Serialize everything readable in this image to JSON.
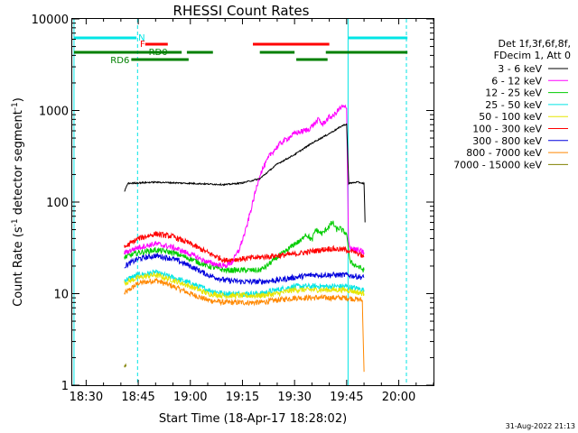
{
  "chart_data": {
    "type": "line",
    "title": "RHESSI Count Rates",
    "xlabel": "Start Time (18-Apr-17 18:28:02)",
    "ylabel": "Count Rate (s⁻¹ detector segment⁻¹)",
    "ylabel_parts": [
      "Count Rate (s",
      "-1",
      " detector segment",
      "-1",
      ")"
    ],
    "xlim_minutes": [
      26,
      130
    ],
    "ylim": [
      1,
      10000
    ],
    "yscale": "log",
    "x_ticks": [
      {
        "label": "18:30",
        "minute": 30
      },
      {
        "label": "18:45",
        "minute": 45
      },
      {
        "label": "19:00",
        "minute": 60
      },
      {
        "label": "19:15",
        "minute": 75
      },
      {
        "label": "19:30",
        "minute": 90
      },
      {
        "label": "19:45",
        "minute": 105
      },
      {
        "label": "20:00",
        "minute": 120
      }
    ],
    "y_ticks": [
      {
        "label": "1",
        "value": 1
      },
      {
        "label": "10",
        "value": 10
      },
      {
        "label": "100",
        "value": 100
      },
      {
        "label": "1000",
        "value": 1000
      },
      {
        "label": "10000",
        "value": 10000
      }
    ],
    "legend_header": [
      "Det 1f,3f,6f,8f,",
      "FDecim 1, Att 0"
    ],
    "legend_placement": "right",
    "series": [
      {
        "name": "3 - 6 keV",
        "color": "#000000",
        "x": [
          41,
          42,
          50,
          60,
          70,
          75,
          80,
          85,
          90,
          95,
          100,
          104,
          105,
          105.6,
          108,
          110,
          110.3
        ],
        "y": [
          130,
          160,
          165,
          160,
          155,
          162,
          180,
          260,
          330,
          440,
          560,
          690,
          710,
          160,
          165,
          160,
          60
        ]
      },
      {
        "name": "6 - 12 keV",
        "color": "#ff00ff",
        "x": [
          41,
          45,
          50,
          55,
          60,
          65,
          70,
          72,
          74,
          76,
          78,
          80,
          83,
          86,
          90,
          94,
          97,
          98,
          100,
          101,
          103,
          104,
          105,
          105.5,
          106,
          108,
          110
        ],
        "y": [
          28,
          32,
          35,
          32,
          27,
          22,
          20,
          22,
          30,
          50,
          100,
          200,
          330,
          440,
          560,
          620,
          800,
          700,
          850,
          860,
          1050,
          1100,
          1050,
          40,
          32,
          30,
          28
        ]
      },
      {
        "name": "12 - 25 keV",
        "color": "#00cc00",
        "x": [
          41,
          45,
          50,
          55,
          60,
          65,
          70,
          75,
          80,
          82,
          85,
          88,
          90,
          92,
          93,
          94,
          95,
          96,
          98,
          100,
          101,
          102,
          103,
          104,
          105,
          106,
          108,
          110
        ],
        "y": [
          25,
          28,
          30,
          28,
          24,
          20,
          18,
          18,
          18,
          20,
          25,
          30,
          35,
          38,
          45,
          42,
          38,
          50,
          45,
          55,
          60,
          50,
          52,
          48,
          45,
          22,
          20,
          18
        ]
      },
      {
        "name": "25 - 50 keV",
        "color": "#00e5e5",
        "x": [
          41,
          45,
          50,
          55,
          60,
          65,
          70,
          75,
          80,
          85,
          90,
          95,
          100,
          105,
          110
        ],
        "y": [
          14,
          16,
          17,
          15,
          13,
          11,
          10,
          10,
          10,
          11,
          12,
          12,
          12,
          12,
          11
        ]
      },
      {
        "name": "50 - 100 keV",
        "color": "#e6e600",
        "x": [
          41,
          45,
          50,
          55,
          60,
          65,
          70,
          75,
          80,
          85,
          90,
          95,
          100,
          105,
          110
        ],
        "y": [
          13,
          15,
          16,
          14,
          12,
          10,
          9.5,
          9.5,
          9.5,
          10,
          11,
          11,
          11,
          11,
          10
        ]
      },
      {
        "name": "100 - 300 keV",
        "color": "#ff0000",
        "x": [
          41,
          45,
          50,
          55,
          60,
          65,
          70,
          75,
          80,
          85,
          90,
          95,
          100,
          105,
          108,
          110
        ],
        "y": [
          32,
          40,
          45,
          42,
          35,
          28,
          23,
          24,
          25,
          26,
          27,
          29,
          31,
          30,
          28,
          25
        ]
      },
      {
        "name": "300 - 800 keV",
        "color": "#0000dd",
        "x": [
          41,
          45,
          50,
          55,
          60,
          65,
          70,
          75,
          80,
          85,
          90,
          95,
          100,
          105,
          110
        ],
        "y": [
          20,
          24,
          26,
          24,
          20,
          16,
          14,
          13.5,
          13.5,
          14,
          15,
          16,
          16,
          16,
          15
        ]
      },
      {
        "name": "800 - 7000 keV",
        "color": "#ff8800",
        "x": [
          41,
          45,
          50,
          55,
          60,
          65,
          70,
          75,
          80,
          85,
          90,
          95,
          100,
          105,
          109.5,
          110
        ],
        "y": [
          10,
          13,
          14,
          12,
          10,
          8.5,
          8,
          8,
          8,
          8.5,
          9,
          9,
          9,
          9,
          8.5,
          1.4
        ]
      },
      {
        "name": "7000 - 15000 keV",
        "color": "#808000",
        "x": [
          41,
          41.5
        ],
        "y": [
          1.6,
          1.6
        ]
      }
    ],
    "state_bars": [
      {
        "label": "N",
        "label_color": "#00e5e5",
        "label_minute": 45,
        "segments": [
          {
            "color": "#00e5e5",
            "level": "top",
            "start": 26.5,
            "end": 44.5
          },
          {
            "color": "#00e5e5",
            "level": "top",
            "start": 105.5,
            "end": 122.5
          }
        ]
      },
      {
        "label": "F",
        "label_color": "#ff0000",
        "label_minute": 45.5,
        "segments": [
          {
            "color": "#ff0000",
            "level": "mid",
            "start": 47,
            "end": 53.5
          },
          {
            "color": "#ff0000",
            "level": "mid",
            "start": 78,
            "end": 100
          }
        ]
      },
      {
        "label": "RD0",
        "label_color": "#008000",
        "label_minute": 48,
        "segments": [
          {
            "color": "#008000",
            "level": "low",
            "start": 26.5,
            "end": 57.5
          },
          {
            "color": "#008000",
            "level": "low",
            "start": 59,
            "end": 66.5
          },
          {
            "color": "#008000",
            "level": "low",
            "start": 80,
            "end": 90
          },
          {
            "color": "#008000",
            "level": "low",
            "start": 99,
            "end": 122.5
          }
        ]
      },
      {
        "label": "RD6",
        "label_color": "#008000",
        "label_minute": 37,
        "segments": [
          {
            "color": "#008000",
            "level": "bottom",
            "start": 43,
            "end": 59.5
          },
          {
            "color": "#008000",
            "level": "bottom",
            "start": 90.5,
            "end": 99.5
          }
        ]
      }
    ],
    "vertical_lines": [
      {
        "minute": 26.5,
        "color": "#00e5e5",
        "style": "solid"
      },
      {
        "minute": 44.8,
        "color": "#00e5e5",
        "style": "dashed"
      },
      {
        "minute": 105.4,
        "color": "#00e5e5",
        "style": "solid"
      },
      {
        "minute": 122.2,
        "color": "#00e5e5",
        "style": "dashed"
      }
    ],
    "grid": false,
    "timestamp": "31-Aug-2022 21:13"
  }
}
